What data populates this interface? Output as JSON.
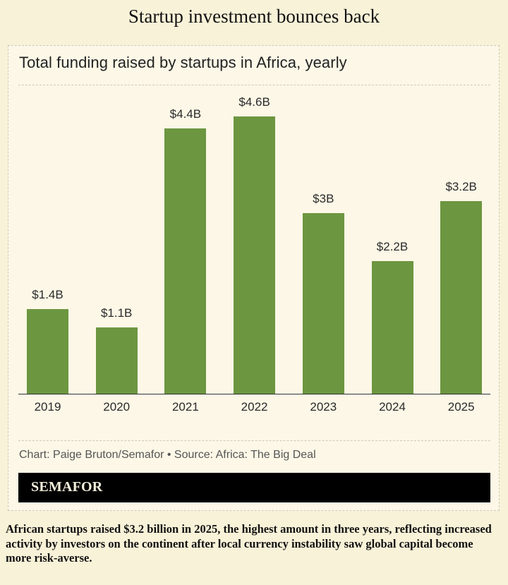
{
  "headline": "Startup investment bounces back",
  "chart_data": {
    "type": "bar",
    "title": "Total funding raised by startups in Africa, yearly",
    "categories": [
      "2019",
      "2020",
      "2021",
      "2022",
      "2023",
      "2024",
      "2025"
    ],
    "values": [
      1.4,
      1.1,
      4.4,
      4.6,
      3.0,
      2.2,
      3.2
    ],
    "labels": [
      "$1.4B",
      "$1.1B",
      "$4.4B",
      "$4.6B",
      "$3B",
      "$2.2B",
      "$3.2B"
    ],
    "units": "billions USD",
    "xlabel": "",
    "ylabel": "",
    "ylim": [
      0,
      4.6
    ],
    "grid": false,
    "legend": "none",
    "bar_color": "#6c9640"
  },
  "credit": "Chart: Paige Bruton/Semafor • Source: Africa: The Big Deal",
  "brand": "SEMAFOR",
  "caption": "African startups raised $3.2 billion in 2025, the highest amount in three years, reflecting increased activity by investors on the continent after local currency instability saw global capital become more risk-averse."
}
